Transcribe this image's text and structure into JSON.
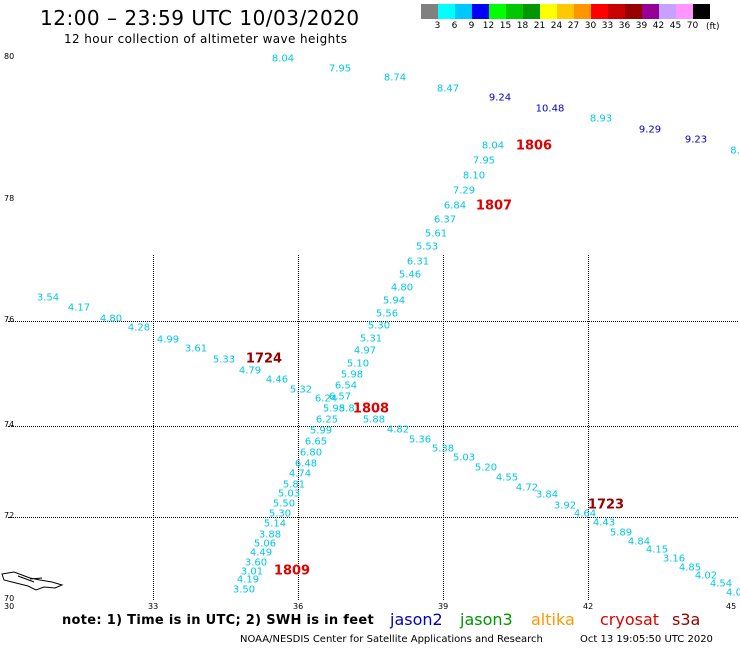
{
  "title": "12:00 – 23:59 UTC 10/03/2020",
  "subtitle": "12 hour collection of altimeter wave heights",
  "legend": {
    "unit": "(ft)",
    "bins": [
      {
        "label": "3",
        "color": "#808080"
      },
      {
        "label": "6",
        "color": "#00ffff"
      },
      {
        "label": "9",
        "color": "#00c8ff"
      },
      {
        "label": "12",
        "color": "#0000ff"
      },
      {
        "label": "15",
        "color": "#00ff00"
      },
      {
        "label": "18",
        "color": "#00c800"
      },
      {
        "label": "21",
        "color": "#009600"
      },
      {
        "label": "24",
        "color": "#ffff00"
      },
      {
        "label": "27",
        "color": "#ffc800"
      },
      {
        "label": "30",
        "color": "#ff9600"
      },
      {
        "label": "33",
        "color": "#ff0000"
      },
      {
        "label": "36",
        "color": "#c80000"
      },
      {
        "label": "39",
        "color": "#960000"
      },
      {
        "label": "42",
        "color": "#960096"
      },
      {
        "label": "45",
        "color": "#c8a0ff"
      },
      {
        "label": "70",
        "color": "#ff96ff"
      },
      {
        "label": "",
        "color": "#000000"
      }
    ]
  },
  "axes": {
    "lat_labels": [
      "80",
      "78",
      "76",
      "74",
      "72",
      "70"
    ],
    "lon_labels": [
      "30",
      "33",
      "36",
      "39",
      "42",
      "45"
    ]
  },
  "colors": {
    "light": "#00c8e6",
    "blue": "#0000c8",
    "red": "#e00000",
    "darkred": "#960000"
  },
  "observations": [
    {
      "text": "8.04",
      "c": "light"
    },
    {
      "text": "7.95",
      "c": "light"
    },
    {
      "text": "8.74",
      "c": "light"
    },
    {
      "text": "8.47",
      "c": "light"
    },
    {
      "text": "9.24",
      "c": "blue"
    },
    {
      "text": "10.48",
      "c": "blue"
    },
    {
      "text": "8.93",
      "c": "light"
    },
    {
      "text": "9.29",
      "c": "blue"
    },
    {
      "text": "9.23",
      "c": "blue"
    },
    {
      "text": "8.",
      "c": "light"
    },
    {
      "text": "8.04",
      "c": "light"
    },
    {
      "text": "7.95",
      "c": "light"
    },
    {
      "text": "8.10",
      "c": "light"
    },
    {
      "text": "7.29",
      "c": "light"
    },
    {
      "text": "6.84",
      "c": "light"
    },
    {
      "text": "6.37",
      "c": "light"
    },
    {
      "text": "5.61",
      "c": "light"
    },
    {
      "text": "5.53",
      "c": "light"
    },
    {
      "text": "6.31",
      "c": "light"
    },
    {
      "text": "5.46",
      "c": "light"
    },
    {
      "text": "4.80",
      "c": "light"
    },
    {
      "text": "5.94",
      "c": "light"
    },
    {
      "text": "5.56",
      "c": "light"
    },
    {
      "text": "5.30",
      "c": "light"
    },
    {
      "text": "5.31",
      "c": "light"
    },
    {
      "text": "4.97",
      "c": "light"
    },
    {
      "text": "5.10",
      "c": "light"
    },
    {
      "text": "5.98",
      "c": "light"
    },
    {
      "text": "6.54",
      "c": "light"
    },
    {
      "text": "6.57",
      "c": "light"
    },
    {
      "text": "6.24",
      "c": "light"
    },
    {
      "text": "5.98",
      "c": "light"
    },
    {
      "text": "5.81",
      "c": "light"
    },
    {
      "text": "6.25",
      "c": "light"
    },
    {
      "text": "5.99",
      "c": "light"
    },
    {
      "text": "6.65",
      "c": "light"
    },
    {
      "text": "6.80",
      "c": "light"
    },
    {
      "text": "6.48",
      "c": "light"
    },
    {
      "text": "4.74",
      "c": "light"
    },
    {
      "text": "5.81",
      "c": "light"
    },
    {
      "text": "5.03",
      "c": "light"
    },
    {
      "text": "5.50",
      "c": "light"
    },
    {
      "text": "5.30",
      "c": "light"
    },
    {
      "text": "5.14",
      "c": "light"
    },
    {
      "text": "3.88",
      "c": "light"
    },
    {
      "text": "5.06",
      "c": "light"
    },
    {
      "text": "4.49",
      "c": "light"
    },
    {
      "text": "3.60",
      "c": "light"
    },
    {
      "text": "3.01",
      "c": "light"
    },
    {
      "text": "4.19",
      "c": "light"
    },
    {
      "text": "3.50",
      "c": "light"
    },
    {
      "text": "3.54",
      "c": "light"
    },
    {
      "text": "4.17",
      "c": "light"
    },
    {
      "text": "4.80",
      "c": "light"
    },
    {
      "text": "4.28",
      "c": "light"
    },
    {
      "text": "4.99",
      "c": "light"
    },
    {
      "text": "3.61",
      "c": "light"
    },
    {
      "text": "5.33",
      "c": "light"
    },
    {
      "text": "4.79",
      "c": "light"
    },
    {
      "text": "4.46",
      "c": "light"
    },
    {
      "text": "5.32",
      "c": "light"
    },
    {
      "text": "5.88",
      "c": "light"
    },
    {
      "text": "4.82",
      "c": "light"
    },
    {
      "text": "5.36",
      "c": "light"
    },
    {
      "text": "5.38",
      "c": "light"
    },
    {
      "text": "5.03",
      "c": "light"
    },
    {
      "text": "5.20",
      "c": "light"
    },
    {
      "text": "4.55",
      "c": "light"
    },
    {
      "text": "4.72",
      "c": "light"
    },
    {
      "text": "3.84",
      "c": "light"
    },
    {
      "text": "3.92",
      "c": "light"
    },
    {
      "text": "4.64",
      "c": "light"
    },
    {
      "text": "4.43",
      "c": "light"
    },
    {
      "text": "5.89",
      "c": "light"
    },
    {
      "text": "4.84",
      "c": "light"
    },
    {
      "text": "4.15",
      "c": "light"
    },
    {
      "text": "3.16",
      "c": "light"
    },
    {
      "text": "4.85",
      "c": "light"
    },
    {
      "text": "4.02",
      "c": "light"
    },
    {
      "text": "4.54",
      "c": "light"
    },
    {
      "text": "4.0",
      "c": "light"
    }
  ],
  "pass_times": [
    {
      "text": "1806",
      "c": "red"
    },
    {
      "text": "1807",
      "c": "red"
    },
    {
      "text": "1724",
      "c": "darkred"
    },
    {
      "text": "1808",
      "c": "red"
    },
    {
      "text": "1723",
      "c": "darkred"
    },
    {
      "text": "1809",
      "c": "red"
    }
  ],
  "footer": {
    "note": "note:  1) Time is in UTC;  2) SWH is in feet",
    "missions": [
      {
        "name": "jason2",
        "color": "#0000c8"
      },
      {
        "name": "jason3",
        "color": "#009600"
      },
      {
        "name": "altika",
        "color": "#ff9600"
      },
      {
        "name": "cryosat",
        "color": "#e00000"
      },
      {
        "name": "s3a",
        "color": "#960000"
      }
    ],
    "credit": "NOAA/NESDIS Center for Satellite Applications and Research",
    "timestamp": "Oct 13 19:05:50 UTC 2020"
  }
}
